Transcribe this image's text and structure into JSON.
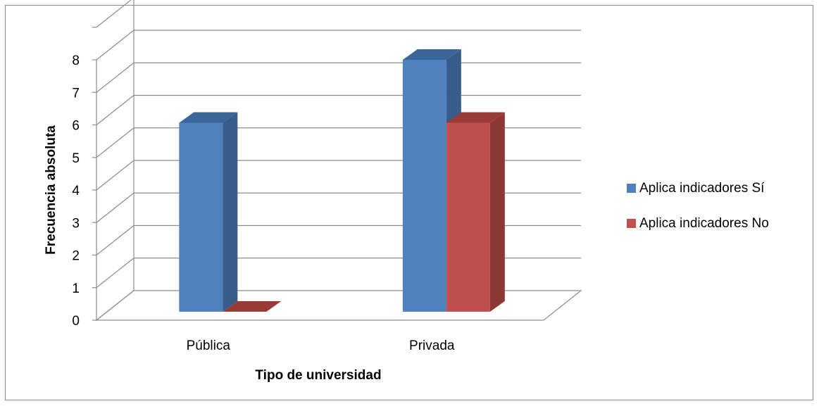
{
  "chart_data": {
    "type": "bar",
    "three_d": true,
    "xlabel": "Tipo de universidad",
    "ylabel": "Frecuencia absoluta",
    "categories": [
      "Pública",
      "Privada"
    ],
    "series": [
      {
        "name": "Aplica indicadores Sí",
        "values": [
          6,
          8
        ],
        "color": "#4f81bd",
        "side_color": "#385d8a",
        "top_color": "#3a659a"
      },
      {
        "name": "Aplica indicadores No",
        "values": [
          0,
          6
        ],
        "color": "#c0504d",
        "side_color": "#8c3836",
        "top_color": "#9b3b39"
      }
    ],
    "ylim": [
      0,
      8
    ],
    "yticks": [
      0,
      1,
      2,
      3,
      4,
      5,
      6,
      7,
      8
    ],
    "grid": true,
    "legend_position": "right"
  }
}
